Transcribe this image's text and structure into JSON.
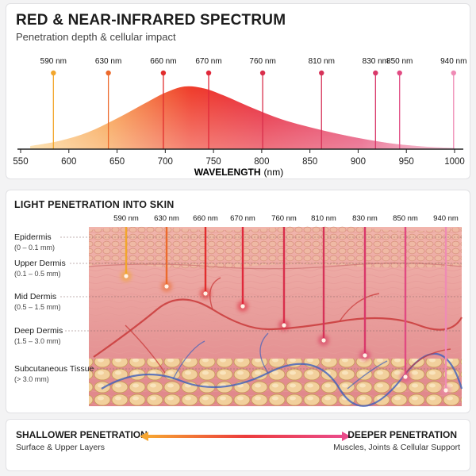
{
  "spectrum": {
    "title": "RED & NEAR-INFRARED SPECTRUM",
    "subtitle": "Penetration depth & cellular impact",
    "xlabel_bold": "WAVELENGTH",
    "xlabel_unit": "(nm)",
    "x_ticks": [
      "550",
      "600",
      "650",
      "700",
      "750",
      "800",
      "850",
      "900",
      "950",
      "1000"
    ],
    "markers": [
      {
        "label": "590 nm",
        "color": "#f2a62c"
      },
      {
        "label": "630 nm",
        "color": "#ec6a2c"
      },
      {
        "label": "660 nm",
        "color": "#e12d2d"
      },
      {
        "label": "670 nm",
        "color": "#e0283a"
      },
      {
        "label": "760 nm",
        "color": "#d92e4b"
      },
      {
        "label": "810 nm",
        "color": "#d63258"
      },
      {
        "label": "830 nm",
        "color": "#d9386a"
      },
      {
        "label": "850 nm",
        "color": "#e14a82"
      },
      {
        "label": "940 nm",
        "color": "#ef8bb5"
      }
    ]
  },
  "chart_data": {
    "type": "area",
    "title": "RED & NEAR-INFRARED SPECTRUM",
    "subtitle": "Penetration depth & cellular impact",
    "xlabel": "WAVELENGTH (nm)",
    "ylabel": "",
    "xlim": [
      550,
      1000
    ],
    "x_ticks": [
      550,
      600,
      650,
      700,
      750,
      800,
      850,
      900,
      950,
      1000
    ],
    "curve": {
      "x": [
        560,
        590,
        620,
        650,
        680,
        700,
        720,
        740,
        760,
        790,
        820,
        850,
        880,
        910,
        940,
        970,
        1000
      ],
      "y": [
        0.05,
        0.13,
        0.27,
        0.49,
        0.74,
        0.9,
        1.0,
        0.97,
        0.86,
        0.66,
        0.48,
        0.35,
        0.24,
        0.15,
        0.08,
        0.04,
        0.02
      ]
    },
    "marker_positions": [
      584,
      641,
      698,
      745,
      801,
      862,
      918,
      943,
      999
    ]
  },
  "skin": {
    "title": "LIGHT PENETRATION INTO SKIN",
    "beam_labels": [
      "590 nm",
      "630 nm",
      "660 nm",
      "670 nm",
      "760 nm",
      "810 nm",
      "830 nm",
      "850 nm",
      "940 nm"
    ],
    "layers": [
      {
        "name": "Epidermis",
        "range": "(0 – 0.1 mm)"
      },
      {
        "name": "Upper Dermis",
        "range": "(0.1 – 0.5 mm)"
      },
      {
        "name": "Mid Dermis",
        "range": "(0.5 – 1.5 mm)"
      },
      {
        "name": "Deep Dermis",
        "range": "(1.5 – 3.0 mm)"
      },
      {
        "name": "Subcutaneous Tissue",
        "range": "(> 3.0 mm)"
      }
    ]
  },
  "legend": {
    "left_title": "SHALLOWER PENETRATION",
    "left_sub": "Surface & Upper Layers",
    "right_title": "DEEPER PENETRATION",
    "right_sub": "Muscles, Joints & Cellular Support"
  }
}
